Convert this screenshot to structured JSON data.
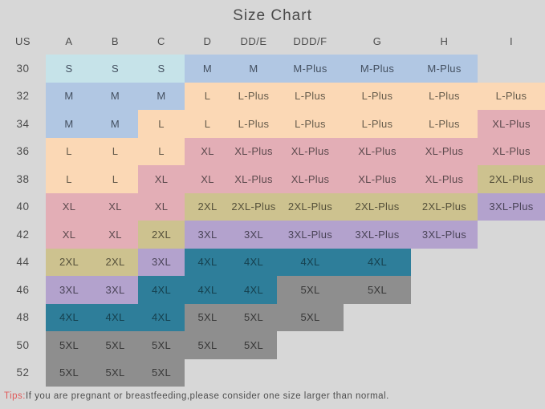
{
  "chart_data": {
    "type": "table",
    "title": "Size Chart",
    "columns": [
      "US",
      "A",
      "B",
      "C",
      "D",
      "DD/E",
      "DDD/F",
      "G",
      "H",
      "I"
    ],
    "row_labels": [
      "30",
      "32",
      "34",
      "36",
      "38",
      "40",
      "42",
      "44",
      "46",
      "48",
      "50",
      "52"
    ],
    "rows": [
      [
        [
          "S",
          "cyan"
        ],
        [
          "S",
          "cyan"
        ],
        [
          "S",
          "cyan"
        ],
        [
          "M",
          "blue"
        ],
        [
          "M",
          "blue"
        ],
        [
          "M-Plus",
          "blue"
        ],
        [
          "M-Plus",
          "blue"
        ],
        [
          "M-Plus",
          "blue"
        ],
        [
          "",
          ""
        ]
      ],
      [
        [
          "M",
          "blue"
        ],
        [
          "M",
          "blue"
        ],
        [
          "M",
          "blue"
        ],
        [
          "L",
          "peach"
        ],
        [
          "L-Plus",
          "peach"
        ],
        [
          "L-Plus",
          "peach"
        ],
        [
          "L-Plus",
          "peach"
        ],
        [
          "L-Plus",
          "peach"
        ],
        [
          "L-Plus",
          "peach"
        ]
      ],
      [
        [
          "M",
          "blue"
        ],
        [
          "M",
          "blue"
        ],
        [
          "L",
          "peach"
        ],
        [
          "L",
          "peach"
        ],
        [
          "L-Plus",
          "peach"
        ],
        [
          "L-Plus",
          "peach"
        ],
        [
          "L-Plus",
          "peach"
        ],
        [
          "L-Plus",
          "peach"
        ],
        [
          "XL-Plus",
          "pink"
        ]
      ],
      [
        [
          "L",
          "peach"
        ],
        [
          "L",
          "peach"
        ],
        [
          "L",
          "peach"
        ],
        [
          "XL",
          "pink"
        ],
        [
          "XL-Plus",
          "pink"
        ],
        [
          "XL-Plus",
          "pink"
        ],
        [
          "XL-Plus",
          "pink"
        ],
        [
          "XL-Plus",
          "pink"
        ],
        [
          "XL-Plus",
          "pink"
        ]
      ],
      [
        [
          "L",
          "peach"
        ],
        [
          "L",
          "peach"
        ],
        [
          "XL",
          "pink"
        ],
        [
          "XL",
          "pink"
        ],
        [
          "XL-Plus",
          "pink"
        ],
        [
          "XL-Plus",
          "pink"
        ],
        [
          "XL-Plus",
          "pink"
        ],
        [
          "XL-Plus",
          "pink"
        ],
        [
          "2XL-Plus",
          "olive"
        ]
      ],
      [
        [
          "XL",
          "pink"
        ],
        [
          "XL",
          "pink"
        ],
        [
          "XL",
          "pink"
        ],
        [
          "2XL",
          "olive"
        ],
        [
          "2XL-Plus",
          "olive"
        ],
        [
          "2XL-Plus",
          "olive"
        ],
        [
          "2XL-Plus",
          "olive"
        ],
        [
          "2XL-Plus",
          "olive"
        ],
        [
          "3XL-Plus",
          "purple"
        ]
      ],
      [
        [
          "XL",
          "pink"
        ],
        [
          "XL",
          "pink"
        ],
        [
          "2XL",
          "olive"
        ],
        [
          "3XL",
          "purple"
        ],
        [
          "3XL",
          "purple"
        ],
        [
          "3XL-Plus",
          "purple"
        ],
        [
          "3XL-Plus",
          "purple"
        ],
        [
          "3XL-Plus",
          "purple"
        ],
        [
          "",
          ""
        ]
      ],
      [
        [
          "2XL",
          "olive"
        ],
        [
          "2XL",
          "olive"
        ],
        [
          "3XL",
          "purple"
        ],
        [
          "4XL",
          "teal"
        ],
        [
          "4XL",
          "teal"
        ],
        [
          "4XL",
          "teal"
        ],
        [
          "4XL",
          "teal"
        ],
        [
          "",
          ""
        ],
        [
          "",
          ""
        ]
      ],
      [
        [
          "3XL",
          "purple"
        ],
        [
          "3XL",
          "purple"
        ],
        [
          "4XL",
          "teal"
        ],
        [
          "4XL",
          "teal"
        ],
        [
          "4XL",
          "teal"
        ],
        [
          "5XL",
          "gray"
        ],
        [
          "5XL",
          "gray"
        ],
        [
          "",
          ""
        ],
        [
          "",
          ""
        ]
      ],
      [
        [
          "4XL",
          "teal"
        ],
        [
          "4XL",
          "teal"
        ],
        [
          "4XL",
          "teal"
        ],
        [
          "5XL",
          "gray"
        ],
        [
          "5XL",
          "gray"
        ],
        [
          "5XL",
          "gray"
        ],
        [
          "",
          ""
        ],
        [
          "",
          ""
        ],
        [
          "",
          ""
        ]
      ],
      [
        [
          "5XL",
          "gray"
        ],
        [
          "5XL",
          "gray"
        ],
        [
          "5XL",
          "gray"
        ],
        [
          "5XL",
          "gray"
        ],
        [
          "5XL",
          "gray"
        ],
        [
          "",
          ""
        ],
        [
          "",
          ""
        ],
        [
          "",
          ""
        ],
        [
          "",
          ""
        ]
      ],
      [
        [
          "5XL",
          "gray"
        ],
        [
          "5XL",
          "gray"
        ],
        [
          "5XL",
          "gray"
        ],
        [
          "",
          ""
        ],
        [
          "",
          ""
        ],
        [
          "",
          ""
        ],
        [
          "",
          ""
        ],
        [
          "",
          ""
        ],
        [
          "",
          ""
        ]
      ]
    ],
    "note": "Tips:If you are pregnant or breastfeeding,please consider one size larger than normal.",
    "legend_position": "none",
    "grid": false
  },
  "tips": {
    "label": "Tips:",
    "text": "If you are pregnant or breastfeeding,please consider one size larger than normal."
  },
  "palette": {
    "cyan": "#c6e3e9",
    "blue": "#b1c7e3",
    "peach": "#fbd8b5",
    "pink": "#e3aeb6",
    "olive": "#cdc28f",
    "purple": "#b3a2cd",
    "teal": "#2e7e9a",
    "gray": "#8e8e8e",
    "background": "#d7d7d7",
    "title_text": "#4a4a4a",
    "tips_accent": "#e05a5a"
  }
}
